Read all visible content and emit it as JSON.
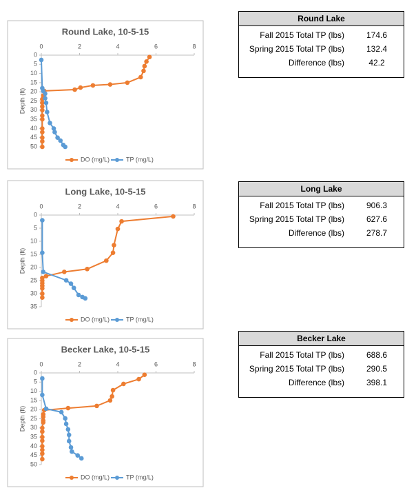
{
  "chart_data": [
    {
      "type": "line",
      "title": "Round Lake, 10-5-15",
      "y_label": "Depth (ft)",
      "xlim": [
        0,
        8
      ],
      "xticks": [
        0,
        2,
        4,
        6,
        8
      ],
      "ylim": [
        0,
        50
      ],
      "yticks": [
        0,
        5,
        10,
        15,
        20,
        25,
        30,
        35,
        40,
        45,
        50
      ],
      "y_reversed": true,
      "series": [
        {
          "name": "DO (mg/L)",
          "color": "#ed7d31",
          "x": [
            5.66,
            5.5,
            5.4,
            5.35,
            5.2,
            4.5,
            3.6,
            2.7,
            2.05,
            1.75,
            0.15,
            0.1,
            0.05,
            0.05,
            0.05,
            0.05,
            0.05,
            0.05,
            0.05,
            0.05,
            0.05,
            0.05,
            0.05
          ],
          "y": [
            1,
            3.5,
            6,
            8.6,
            12,
            15,
            16,
            16.5,
            17.7,
            18.8,
            19.5,
            22,
            24,
            26,
            28,
            30,
            33,
            35,
            40,
            42,
            45,
            47,
            50
          ]
        },
        {
          "name": "TP (mg/L)",
          "color": "#5b9bd5",
          "x": [
            0,
            0.05,
            0.1,
            0.2,
            0.2,
            0.25,
            0.3,
            0.45,
            0.65,
            0.7,
            0.85,
            1.0,
            1.15,
            1.25
          ],
          "y": [
            2.6,
            18,
            19.5,
            21,
            23.5,
            26,
            31,
            37,
            40,
            42,
            45,
            46.6,
            49,
            50
          ]
        }
      ]
    },
    {
      "type": "line",
      "title": "Long Lake, 10-5-15",
      "y_label": "Depth (ft)",
      "xlim": [
        0,
        8
      ],
      "xticks": [
        0,
        2,
        4,
        6,
        8
      ],
      "ylim": [
        0,
        35
      ],
      "yticks": [
        0,
        5,
        10,
        15,
        20,
        25,
        30,
        35
      ],
      "y_reversed": true,
      "series": [
        {
          "name": "DO (mg/L)",
          "color": "#ed7d31",
          "x": [
            6.9,
            4.2,
            4.0,
            3.8,
            3.75,
            3.4,
            2.4,
            1.2,
            0.25,
            0.05,
            0.05,
            0.05,
            0.05,
            0.05,
            0.05,
            0.05
          ],
          "y": [
            0.5,
            2.4,
            5.3,
            11.5,
            14.4,
            17.4,
            20.6,
            21.7,
            23.3,
            24,
            25,
            26,
            27,
            28,
            30,
            31.5
          ]
        },
        {
          "name": "TP (mg/L)",
          "color": "#5b9bd5",
          "x": [
            0.05,
            0.05,
            0.1,
            1.3,
            1.55,
            1.7,
            1.95,
            2.15,
            2.3
          ],
          "y": [
            2,
            14.4,
            21.7,
            24.9,
            26.2,
            27.8,
            30.5,
            31.3,
            31.8
          ]
        }
      ]
    },
    {
      "type": "line",
      "title": "Becker Lake, 10-5-15",
      "y_label": "Depth (ft)",
      "xlim": [
        0,
        8
      ],
      "xticks": [
        0,
        2,
        4,
        6,
        8
      ],
      "ylim": [
        0,
        50
      ],
      "yticks": [
        0,
        5,
        10,
        15,
        20,
        25,
        30,
        35,
        40,
        45,
        50
      ],
      "y_reversed": true,
      "series": [
        {
          "name": "DO (mg/L)",
          "color": "#ed7d31",
          "x": [
            5.4,
            5.1,
            4.3,
            3.75,
            3.7,
            3.6,
            2.9,
            1.4,
            0.15,
            0.1,
            0.1,
            0.1,
            0.1,
            0.05,
            0.05,
            0.05,
            0.05,
            0.05,
            0.05,
            0.05,
            0.05
          ],
          "y": [
            1,
            3.4,
            6,
            9.4,
            12.8,
            15,
            18,
            19.2,
            20.3,
            22.6,
            24,
            26,
            27,
            30,
            32,
            35,
            37,
            40,
            42,
            44,
            47
          ]
        },
        {
          "name": "TP (mg/L)",
          "color": "#5b9bd5",
          "x": [
            0.05,
            0.05,
            0.25,
            1.05,
            1.25,
            1.3,
            1.4,
            1.45,
            1.45,
            1.55,
            1.6,
            1.9,
            2.1
          ],
          "y": [
            3,
            12,
            19.5,
            21.4,
            24.8,
            27.8,
            30.8,
            33.8,
            37.2,
            40.6,
            42.9,
            45,
            46.6
          ]
        }
      ]
    }
  ],
  "tables": [
    {
      "title": "Round Lake",
      "rows": [
        [
          "Fall 2015 Total TP (lbs)",
          174.6
        ],
        [
          "Spring 2015 Total TP (lbs)",
          132.4
        ],
        [
          "Difference (lbs)",
          42.2
        ]
      ]
    },
    {
      "title": "Long Lake",
      "rows": [
        [
          "Fall 2015 Total TP (lbs)",
          906.3
        ],
        [
          "Spring 2015 Total TP (lbs)",
          627.6
        ],
        [
          "Difference (lbs)",
          278.7
        ]
      ]
    },
    {
      "title": "Becker Lake",
      "rows": [
        [
          "Fall 2015 Total TP (lbs)",
          688.6
        ],
        [
          "Spring 2015 Total TP (lbs)",
          290.5
        ],
        [
          "Difference (lbs)",
          398.1
        ]
      ]
    }
  ]
}
